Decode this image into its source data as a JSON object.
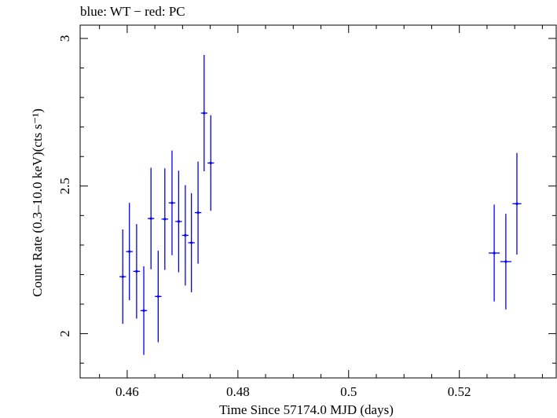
{
  "chart_data": {
    "type": "scatter",
    "title": "blue: WT − red: PC",
    "xlabel": "Time Since 57174.0 MJD (days)",
    "ylabel": "Count Rate (0.3–10.0 keV)(cts s⁻¹)",
    "xlim": [
      0.4515,
      0.5375
    ],
    "ylim": [
      1.85,
      3.045
    ],
    "x_ticks": [
      0.46,
      0.48,
      0.5,
      0.52
    ],
    "x_tick_labels": [
      "0.46",
      "0.48",
      "0.5",
      "0.52"
    ],
    "y_ticks": [
      2,
      2.5,
      3
    ],
    "y_tick_labels": [
      "2",
      "2.5",
      "3"
    ],
    "grid": false,
    "colors": {
      "series": "#0000ff",
      "axes": "#000000"
    },
    "series": [
      {
        "color": "#0000ff",
        "points": [
          {
            "x": 0.4592,
            "y": 2.193,
            "xerr": 0.0006,
            "yerr": 0.16
          },
          {
            "x": 0.4604,
            "y": 2.278,
            "xerr": 0.0006,
            "yerr": 0.165
          },
          {
            "x": 0.4617,
            "y": 2.211,
            "xerr": 0.0006,
            "yerr": 0.16
          },
          {
            "x": 0.463,
            "y": 2.078,
            "xerr": 0.0006,
            "yerr": 0.15
          },
          {
            "x": 0.4643,
            "y": 2.39,
            "xerr": 0.0006,
            "yerr": 0.172
          },
          {
            "x": 0.4656,
            "y": 2.126,
            "xerr": 0.0006,
            "yerr": 0.155
          },
          {
            "x": 0.4668,
            "y": 2.388,
            "xerr": 0.0006,
            "yerr": 0.172
          },
          {
            "x": 0.4681,
            "y": 2.443,
            "xerr": 0.0006,
            "yerr": 0.177
          },
          {
            "x": 0.4693,
            "y": 2.38,
            "xerr": 0.0006,
            "yerr": 0.172
          },
          {
            "x": 0.4705,
            "y": 2.333,
            "xerr": 0.0006,
            "yerr": 0.17
          },
          {
            "x": 0.4716,
            "y": 2.308,
            "xerr": 0.0006,
            "yerr": 0.168
          },
          {
            "x": 0.4728,
            "y": 2.41,
            "xerr": 0.0006,
            "yerr": 0.173
          },
          {
            "x": 0.4739,
            "y": 2.747,
            "xerr": 0.0006,
            "yerr": 0.197
          },
          {
            "x": 0.4751,
            "y": 2.578,
            "xerr": 0.0006,
            "yerr": 0.162
          },
          {
            "x": 0.5263,
            "y": 2.273,
            "xerr": 0.001,
            "yerr": 0.164
          },
          {
            "x": 0.5284,
            "y": 2.244,
            "xerr": 0.001,
            "yerr": 0.162
          },
          {
            "x": 0.5304,
            "y": 2.44,
            "xerr": 0.0008,
            "yerr": 0.172
          }
        ]
      }
    ]
  }
}
